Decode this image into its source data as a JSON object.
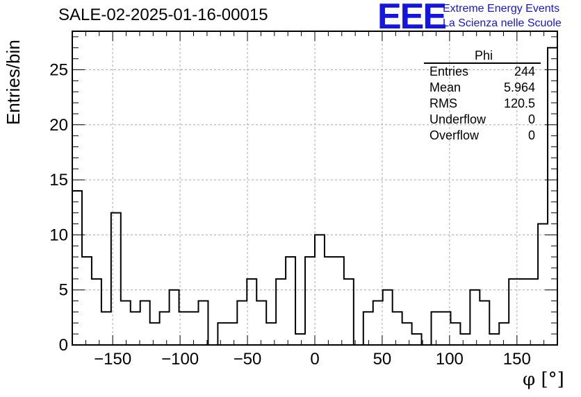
{
  "header": {
    "run_title": "SALE-02-2025-01-16-00015",
    "logo_text": "EEE",
    "logo_line1": "Extreme Energy Events",
    "logo_line2": "La Scienza nelle Scuole"
  },
  "stats_box": {
    "title": "Phi",
    "rows": [
      {
        "label": "Entries",
        "value": "244"
      },
      {
        "label": "Mean",
        "value": "5.964"
      },
      {
        "label": "RMS",
        "value": "120.5"
      },
      {
        "label": "Underflow",
        "value": "0"
      },
      {
        "label": "Overflow",
        "value": "0"
      }
    ]
  },
  "colors": {
    "line": "#000000",
    "grid": "#aaaaaa",
    "logo": "#1515e0"
  },
  "chart_data": {
    "type": "histogram",
    "title": "SALE-02-2025-01-16-00015",
    "xlabel": "φ [°]",
    "ylabel": "Entries/bin",
    "xlim": [
      -180,
      180
    ],
    "ylim": [
      0,
      28.5
    ],
    "bin_width": 7.2,
    "grid": true,
    "x_ticks": [
      -150,
      -100,
      -50,
      0,
      50,
      100,
      150
    ],
    "y_ticks": [
      0,
      5,
      10,
      15,
      20,
      25
    ],
    "bin_edges_start": -180,
    "values": [
      14,
      8,
      6,
      3,
      12,
      4,
      3,
      4,
      2,
      3,
      5,
      3,
      3,
      4,
      0,
      2,
      2,
      4,
      6,
      4,
      2,
      6,
      8,
      1,
      8,
      10,
      8,
      8,
      6,
      0,
      3,
      4,
      5,
      3,
      2,
      1,
      0,
      3,
      3,
      2,
      1,
      5,
      4,
      1,
      2,
      6,
      6,
      6,
      11,
      27
    ]
  }
}
